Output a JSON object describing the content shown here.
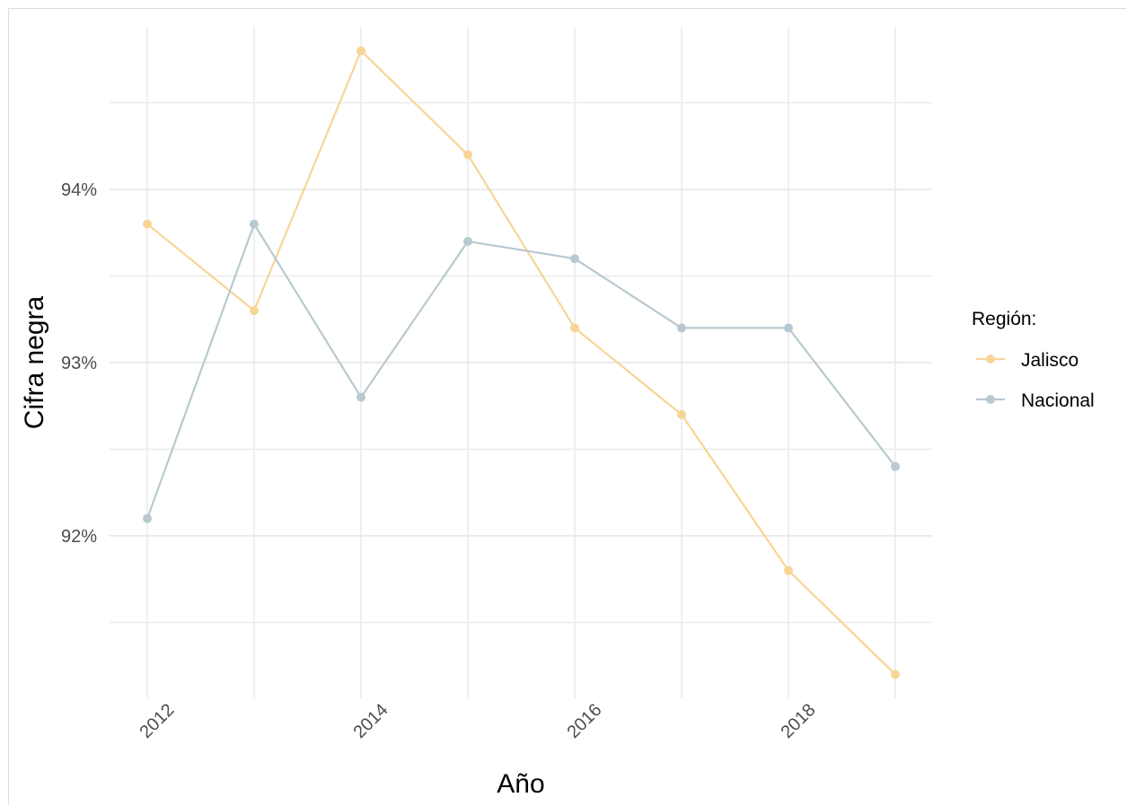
{
  "chart_data": {
    "type": "line",
    "title": "",
    "xlabel": "Año",
    "ylabel": "Cifra negra",
    "x": [
      2012,
      2013,
      2014,
      2015,
      2016,
      2017,
      2018,
      2019
    ],
    "x_ticks": [
      "2012",
      "2014",
      "2016",
      "2018"
    ],
    "y_ticks": [
      "92%",
      "93%",
      "94%"
    ],
    "y_tick_values": [
      92,
      93,
      94
    ],
    "ylim": [
      91.2,
      94.8
    ],
    "xlim": [
      2011.65,
      2019.35
    ],
    "grid": true,
    "legend_title": "Región:",
    "legend_position": "right",
    "series": [
      {
        "name": "Jalisco",
        "color": "#F8D595",
        "values": [
          93.8,
          93.3,
          94.8,
          94.2,
          93.2,
          92.7,
          91.8,
          91.2
        ]
      },
      {
        "name": "Nacional",
        "color": "#B9C9D1",
        "values": [
          92.1,
          93.8,
          92.8,
          93.7,
          93.6,
          93.2,
          93.2,
          92.4
        ]
      }
    ]
  }
}
